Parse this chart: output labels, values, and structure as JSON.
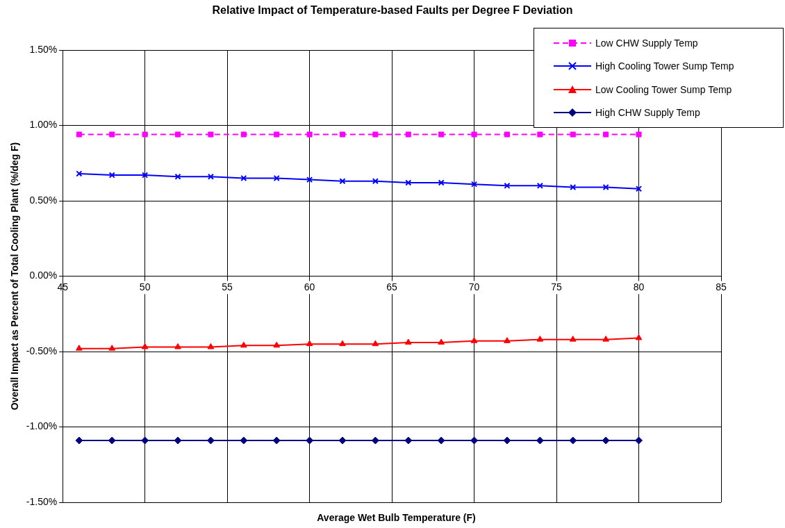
{
  "chart_data": {
    "type": "line",
    "title": "Relative Impact of Temperature-based Faults per Degree F Deviation",
    "xlabel": "Average Wet Bulb Temperature (F)",
    "ylabel": "Overall Impact as Percent of Total Cooling Plant (%/deg F)",
    "x": [
      46,
      48,
      50,
      52,
      54,
      56,
      58,
      60,
      62,
      64,
      66,
      68,
      70,
      72,
      74,
      76,
      78,
      80
    ],
    "series": [
      {
        "name": "Low CHW Supply Temp",
        "color": "#ff00ff",
        "marker": "square",
        "line_style": "dashed",
        "values": [
          0.94,
          0.94,
          0.94,
          0.94,
          0.94,
          0.94,
          0.94,
          0.94,
          0.94,
          0.94,
          0.94,
          0.94,
          0.94,
          0.94,
          0.94,
          0.94,
          0.94,
          0.94
        ]
      },
      {
        "name": "High Cooling Tower Sump Temp",
        "color": "#0000ff",
        "marker": "cross",
        "line_style": "solid",
        "values": [
          0.68,
          0.67,
          0.67,
          0.66,
          0.66,
          0.65,
          0.65,
          0.64,
          0.63,
          0.63,
          0.62,
          0.62,
          0.61,
          0.6,
          0.6,
          0.59,
          0.59,
          0.58
        ]
      },
      {
        "name": "Low Cooling Tower Sump Temp",
        "color": "#ff0000",
        "marker": "triangle",
        "line_style": "solid",
        "values": [
          -0.48,
          -0.48,
          -0.47,
          -0.47,
          -0.47,
          -0.46,
          -0.46,
          -0.45,
          -0.45,
          -0.45,
          -0.44,
          -0.44,
          -0.43,
          -0.43,
          -0.42,
          -0.42,
          -0.42,
          -0.41
        ]
      },
      {
        "name": "High CHW Supply Temp",
        "color": "#000080",
        "marker": "diamond",
        "line_style": "solid",
        "values": [
          -1.09,
          -1.09,
          -1.09,
          -1.09,
          -1.09,
          -1.09,
          -1.09,
          -1.09,
          -1.09,
          -1.09,
          -1.09,
          -1.09,
          -1.09,
          -1.09,
          -1.09,
          -1.09,
          -1.09,
          -1.09
        ]
      }
    ],
    "xlim": [
      45,
      85
    ],
    "xticks": [
      45,
      50,
      55,
      60,
      65,
      70,
      75,
      80,
      85
    ],
    "ylim": [
      -1.5,
      1.5
    ],
    "yticks": [
      {
        "value": -1.5,
        "label": "-1.50%"
      },
      {
        "value": -1,
        "label": "-1.00%"
      },
      {
        "value": -0.5,
        "label": "-0.50%"
      },
      {
        "value": 0,
        "label": "0.00%"
      },
      {
        "value": 0.5,
        "label": "0.50%"
      },
      {
        "value": 1,
        "label": "1.00%"
      },
      {
        "value": 1.5,
        "label": "1.50%"
      }
    ],
    "grid": true,
    "legend": "top right"
  }
}
